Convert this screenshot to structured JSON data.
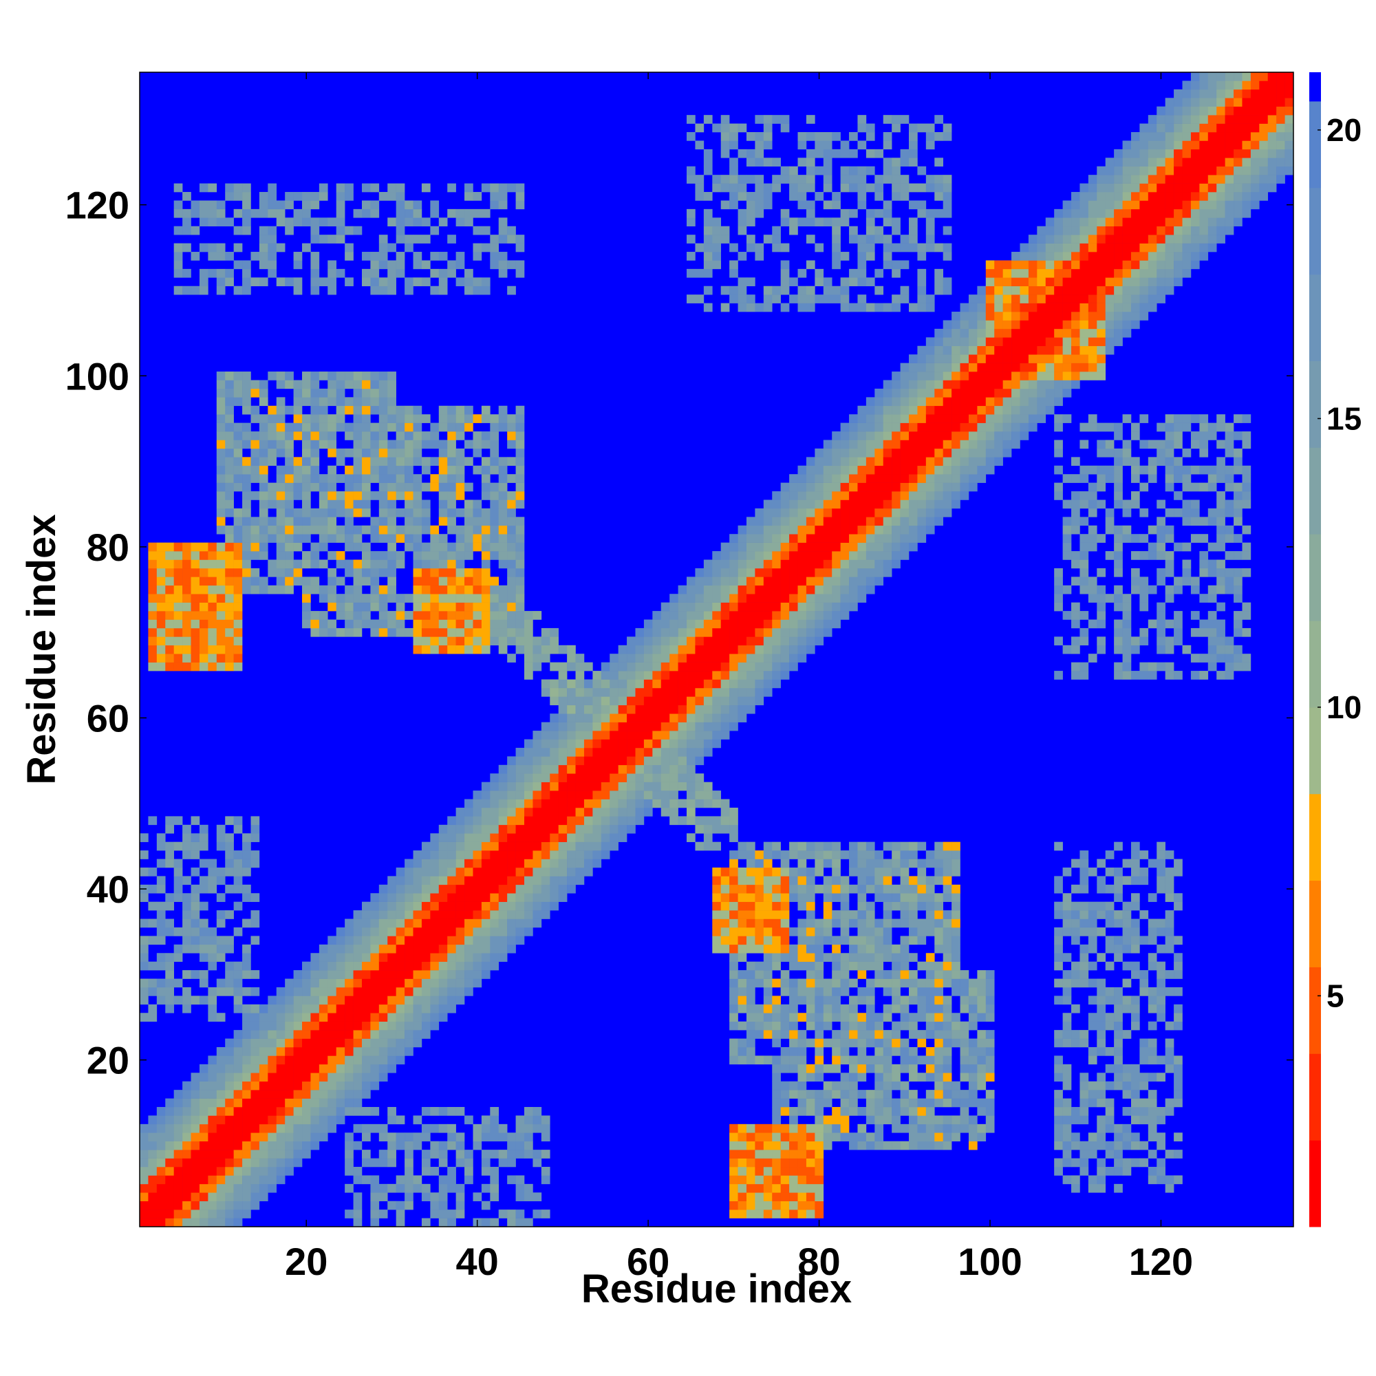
{
  "chart_data": {
    "type": "heatmap",
    "title": "",
    "xlabel": "Residue index",
    "ylabel": "Residue index",
    "xlim": [
      1,
      135
    ],
    "ylim": [
      1,
      135
    ],
    "x_ticks": [
      20,
      40,
      60,
      80,
      100,
      120
    ],
    "y_ticks": [
      20,
      40,
      60,
      80,
      100,
      120
    ],
    "grid": false,
    "colorbar": {
      "range": [
        1,
        21
      ],
      "ticks": [
        5,
        10,
        15,
        20
      ],
      "tick_labels": [
        "5",
        "10",
        "15",
        "20"
      ],
      "levels": [
        {
          "max": 2.5,
          "color": "#ff0000"
        },
        {
          "max": 4.0,
          "color": "#ff2a00"
        },
        {
          "max": 5.5,
          "color": "#ff5500"
        },
        {
          "max": 7.0,
          "color": "#ff8000"
        },
        {
          "max": 8.5,
          "color": "#ffaa00"
        },
        {
          "max": 10.0,
          "color": "#9fb98c"
        },
        {
          "max": 11.5,
          "color": "#95b393"
        },
        {
          "max": 13.0,
          "color": "#8aab9c"
        },
        {
          "max": 14.5,
          "color": "#80a3a6"
        },
        {
          "max": 16.0,
          "color": "#769bb0"
        },
        {
          "max": 17.5,
          "color": "#6c94ba"
        },
        {
          "max": 19.0,
          "color": "#628cc3"
        },
        {
          "max": 20.5,
          "color": "#5884cc"
        },
        {
          "max": 99,
          "color": "#0000ff"
        }
      ]
    },
    "diagonal_band": {
      "core_halfwidth": 2,
      "orange_halfwidth": 4,
      "halo_halfwidth": 11
    },
    "contact_regions": [
      {
        "x": [
          10,
          30
        ],
        "y": [
          75,
          100
        ],
        "level": "mid"
      },
      {
        "x": [
          20,
          45
        ],
        "y": [
          70,
          96
        ],
        "level": "mid"
      },
      {
        "x": [
          2,
          12
        ],
        "y": [
          66,
          80
        ],
        "level": "strong-anti"
      },
      {
        "x": [
          33,
          41
        ],
        "y": [
          68,
          77
        ],
        "level": "strong-anti"
      },
      {
        "x": [
          70,
          80
        ],
        "y": [
          2,
          12
        ],
        "level": "strong-anti"
      },
      {
        "x": [
          68,
          76
        ],
        "y": [
          33,
          42
        ],
        "level": "strong-anti"
      },
      {
        "x": [
          75,
          100
        ],
        "y": [
          10,
          30
        ],
        "level": "mid"
      },
      {
        "x": [
          70,
          96
        ],
        "y": [
          20,
          45
        ],
        "level": "mid"
      },
      {
        "x": [
          5,
          45
        ],
        "y": [
          110,
          122
        ],
        "level": "weak"
      },
      {
        "x": [
          65,
          95
        ],
        "y": [
          108,
          130
        ],
        "level": "weak"
      },
      {
        "x": [
          108,
          130
        ],
        "y": [
          65,
          95
        ],
        "level": "weak"
      },
      {
        "x": [
          108,
          122
        ],
        "y": [
          5,
          45
        ],
        "level": "weak"
      },
      {
        "x": [
          100,
          113
        ],
        "y": [
          100,
          113
        ],
        "level": "strong-anti"
      },
      {
        "x": [
          40,
          70
        ],
        "y": [
          45,
          75
        ],
        "level": "cross"
      },
      {
        "x": [
          0,
          14
        ],
        "y": [
          25,
          48
        ],
        "level": "weak"
      },
      {
        "x": [
          25,
          48
        ],
        "y": [
          0,
          14
        ],
        "level": "weak"
      }
    ]
  }
}
